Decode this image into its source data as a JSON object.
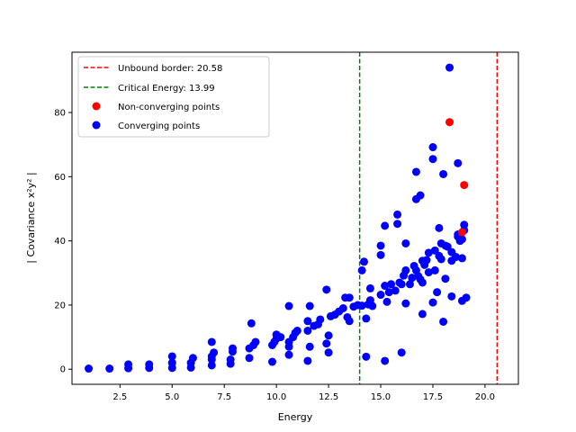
{
  "chart_data": {
    "type": "scatter",
    "xlabel": "Energy",
    "ylabel": "| Covariance x²y² |",
    "xlim": [
      0.2,
      21.6
    ],
    "ylim": [
      -4.7,
      98.8
    ],
    "xticks": [
      2.5,
      5.0,
      7.5,
      10.0,
      12.5,
      15.0,
      17.5,
      20.0
    ],
    "xtick_labels": [
      "2.5",
      "5.0",
      "7.5",
      "10.0",
      "12.5",
      "15.0",
      "17.5",
      "20.0"
    ],
    "yticks": [
      0,
      20,
      40,
      60,
      80
    ],
    "ytick_labels": [
      "0",
      "20",
      "40",
      "60",
      "80"
    ],
    "grid": false,
    "legend_position": "top-left",
    "legend": [
      {
        "label": "Unbound border: 20.58",
        "kind": "dashed-line",
        "color": "#ff0000"
      },
      {
        "label": "Critical Energy: 13.99",
        "kind": "dashed-line",
        "color": "#008000"
      },
      {
        "label": "Non-converging points",
        "kind": "marker",
        "color": "#ff0000"
      },
      {
        "label": "Converging points",
        "kind": "marker",
        "color": "#0000ff"
      }
    ],
    "vlines": [
      {
        "x": 20.58,
        "color": "#ff0000"
      },
      {
        "x": 13.99,
        "color": "#008000"
      }
    ],
    "series": [
      {
        "name": "Non-converging points",
        "color": "#ff0000",
        "points": [
          [
            18.3,
            77.0
          ],
          [
            19.0,
            57.4
          ],
          [
            18.9,
            42.7
          ]
        ]
      },
      {
        "name": "Converging points",
        "color": "#0000ff",
        "points": [
          [
            1.0,
            0.2
          ],
          [
            2.0,
            0.2
          ],
          [
            2.9,
            0.3
          ],
          [
            2.9,
            1.5
          ],
          [
            3.9,
            0.4
          ],
          [
            3.9,
            1.5
          ],
          [
            5.0,
            0.4
          ],
          [
            5.0,
            2.0
          ],
          [
            5.0,
            4.0
          ],
          [
            5.9,
            0.5
          ],
          [
            5.9,
            2.0
          ],
          [
            6.0,
            3.5
          ],
          [
            6.9,
            1.2
          ],
          [
            6.9,
            3.0
          ],
          [
            6.9,
            4.0
          ],
          [
            6.9,
            8.5
          ],
          [
            7.0,
            5.2
          ],
          [
            7.8,
            1.7
          ],
          [
            7.8,
            3.0
          ],
          [
            7.9,
            5.5
          ],
          [
            7.9,
            6.5
          ],
          [
            8.7,
            3.5
          ],
          [
            8.7,
            6.5
          ],
          [
            8.8,
            14.3
          ],
          [
            8.9,
            7.5
          ],
          [
            9.0,
            8.5
          ],
          [
            9.8,
            2.3
          ],
          [
            9.8,
            7.5
          ],
          [
            9.9,
            8.5
          ],
          [
            10.0,
            10.8
          ],
          [
            10.0,
            9.5
          ],
          [
            10.2,
            10.0
          ],
          [
            10.6,
            4.5
          ],
          [
            10.6,
            7.0
          ],
          [
            10.6,
            8.5
          ],
          [
            10.6,
            19.7
          ],
          [
            10.8,
            10.0
          ],
          [
            10.9,
            11.3
          ],
          [
            11.0,
            12.0
          ],
          [
            11.5,
            2.6
          ],
          [
            11.6,
            7.0
          ],
          [
            11.5,
            12.0
          ],
          [
            11.5,
            15.0
          ],
          [
            11.6,
            19.7
          ],
          [
            11.8,
            13.5
          ],
          [
            12.0,
            14.0
          ],
          [
            12.1,
            15.5
          ],
          [
            12.4,
            8.0
          ],
          [
            12.5,
            5.2
          ],
          [
            12.5,
            10.5
          ],
          [
            12.4,
            24.8
          ],
          [
            12.6,
            16.5
          ],
          [
            12.8,
            17.0
          ],
          [
            13.0,
            18.0
          ],
          [
            13.2,
            19.0
          ],
          [
            13.3,
            22.3
          ],
          [
            13.4,
            16.2
          ],
          [
            13.5,
            15.0
          ],
          [
            13.5,
            22.3
          ],
          [
            13.7,
            19.5
          ],
          [
            13.9,
            20.0
          ],
          [
            14.1,
            19.8
          ],
          [
            14.1,
            30.8
          ],
          [
            14.2,
            33.5
          ],
          [
            14.3,
            3.9
          ],
          [
            14.3,
            15.8
          ],
          [
            14.4,
            20.2
          ],
          [
            14.5,
            21.5
          ],
          [
            14.5,
            25.2
          ],
          [
            14.6,
            19.7
          ],
          [
            15.0,
            23.2
          ],
          [
            15.0,
            35.6
          ],
          [
            15.0,
            38.5
          ],
          [
            15.2,
            2.6
          ],
          [
            15.2,
            26.0
          ],
          [
            15.2,
            44.7
          ],
          [
            15.3,
            21.0
          ],
          [
            15.4,
            24.0
          ],
          [
            15.5,
            26.5
          ],
          [
            15.7,
            24.5
          ],
          [
            15.8,
            45.3
          ],
          [
            15.8,
            48.2
          ],
          [
            15.9,
            27.0
          ],
          [
            16.0,
            5.2
          ],
          [
            16.0,
            26.5
          ],
          [
            16.1,
            29.2
          ],
          [
            16.2,
            30.8
          ],
          [
            16.2,
            39.2
          ],
          [
            16.2,
            20.5
          ],
          [
            16.4,
            26.5
          ],
          [
            16.5,
            28.5
          ],
          [
            16.6,
            32.2
          ],
          [
            16.7,
            30.8
          ],
          [
            16.7,
            61.5
          ],
          [
            16.7,
            53.0
          ],
          [
            16.8,
            29.0
          ],
          [
            16.9,
            28.0
          ],
          [
            16.9,
            54.2
          ],
          [
            17.0,
            17.2
          ],
          [
            17.0,
            27.0
          ],
          [
            17.0,
            33.8
          ],
          [
            17.1,
            32.5
          ],
          [
            17.2,
            34.0
          ],
          [
            17.3,
            30.2
          ],
          [
            17.3,
            36.3
          ],
          [
            17.5,
            20.8
          ],
          [
            17.5,
            65.5
          ],
          [
            17.5,
            69.2
          ],
          [
            17.6,
            30.8
          ],
          [
            17.6,
            37.0
          ],
          [
            17.7,
            24.0
          ],
          [
            17.8,
            35.3
          ],
          [
            17.8,
            44.0
          ],
          [
            17.9,
            34.3
          ],
          [
            17.9,
            39.2
          ],
          [
            18.0,
            14.8
          ],
          [
            18.0,
            60.8
          ],
          [
            18.1,
            28.2
          ],
          [
            18.1,
            38.5
          ],
          [
            18.2,
            38.2
          ],
          [
            18.3,
            94.0
          ],
          [
            18.4,
            36.5
          ],
          [
            18.4,
            33.8
          ],
          [
            18.4,
            22.7
          ],
          [
            18.6,
            35.0
          ],
          [
            18.7,
            42.0
          ],
          [
            18.7,
            41.3
          ],
          [
            18.7,
            64.2
          ],
          [
            18.8,
            40.0
          ],
          [
            18.9,
            21.3
          ],
          [
            18.9,
            34.6
          ],
          [
            18.9,
            40.5
          ],
          [
            19.0,
            45.0
          ],
          [
            19.0,
            43.3
          ],
          [
            19.1,
            22.3
          ]
        ]
      }
    ]
  }
}
